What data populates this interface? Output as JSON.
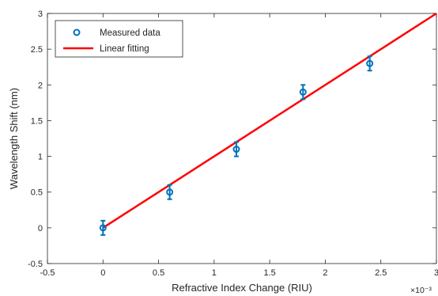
{
  "chart_data": {
    "type": "scatter",
    "title": "",
    "xlabel": "Refractive Index Change (RIU)",
    "ylabel": "Wavelength Shift (nm)",
    "x_multiplier": "×10⁻³",
    "xlim": [
      -0.5,
      3
    ],
    "ylim": [
      -0.5,
      3
    ],
    "x_ticks": [
      "-0.5",
      "0",
      "0.5",
      "1",
      "1.5",
      "2",
      "2.5",
      "3"
    ],
    "y_ticks": [
      "-0.5",
      "0",
      "0.5",
      "1",
      "1.5",
      "2",
      "2.5",
      "3"
    ],
    "grid": false,
    "legend_position": "top-left",
    "series": [
      {
        "name": "Measured data",
        "kind": "scatter",
        "marker": "open-circle",
        "color": "#0072BD",
        "x": [
          0,
          0.6,
          1.2,
          1.8,
          2.4
        ],
        "y": [
          0.0,
          0.5,
          1.1,
          1.9,
          2.3
        ],
        "error": [
          0.1,
          0.1,
          0.1,
          0.1,
          0.1
        ]
      },
      {
        "name": "Linear fitting",
        "kind": "line",
        "color": "#FF0000",
        "x": [
          0,
          3
        ],
        "y": [
          0,
          3
        ]
      }
    ]
  }
}
